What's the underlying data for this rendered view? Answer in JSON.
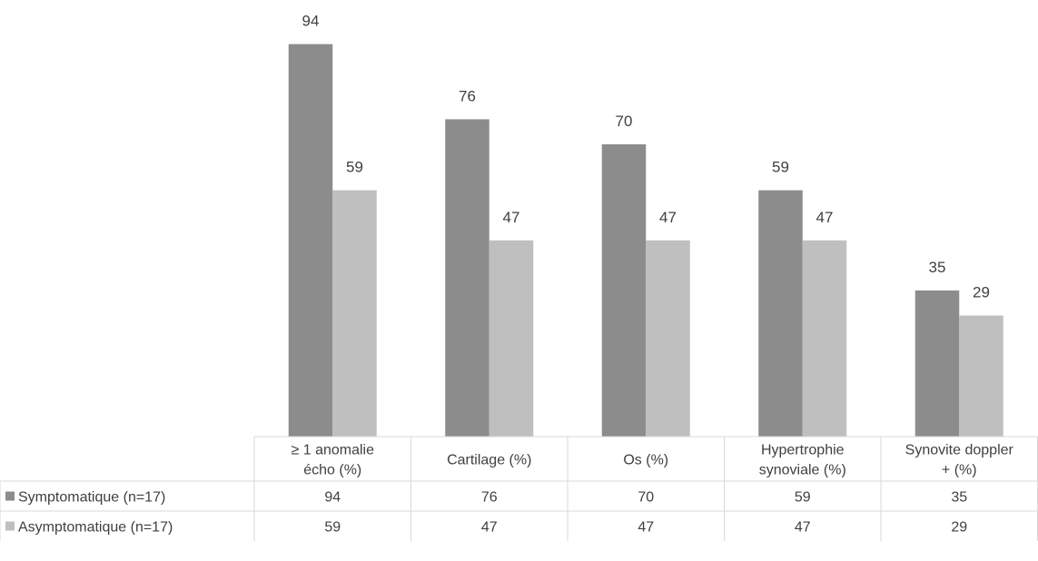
{
  "chart_data": {
    "type": "bar",
    "categories": [
      [
        "≥ 1 anomalie",
        "écho (%)"
      ],
      [
        "Cartilage (%)"
      ],
      [
        "Os (%)"
      ],
      [
        "Hypertrophie",
        "synoviale (%)"
      ],
      [
        "Synovite doppler",
        "+ (%)"
      ]
    ],
    "series": [
      {
        "name": "Symptomatique (n=17)",
        "values": [
          94,
          76,
          70,
          59,
          35
        ],
        "color": "#8c8c8c"
      },
      {
        "name": "Asymptomatique (n=17)",
        "values": [
          59,
          47,
          47,
          47,
          29
        ],
        "color": "#bfbfbf"
      }
    ],
    "ylim": [
      0,
      100
    ],
    "data_labels": true,
    "data_table": true,
    "grid": false,
    "title": "",
    "xlabel": "",
    "ylabel": ""
  }
}
